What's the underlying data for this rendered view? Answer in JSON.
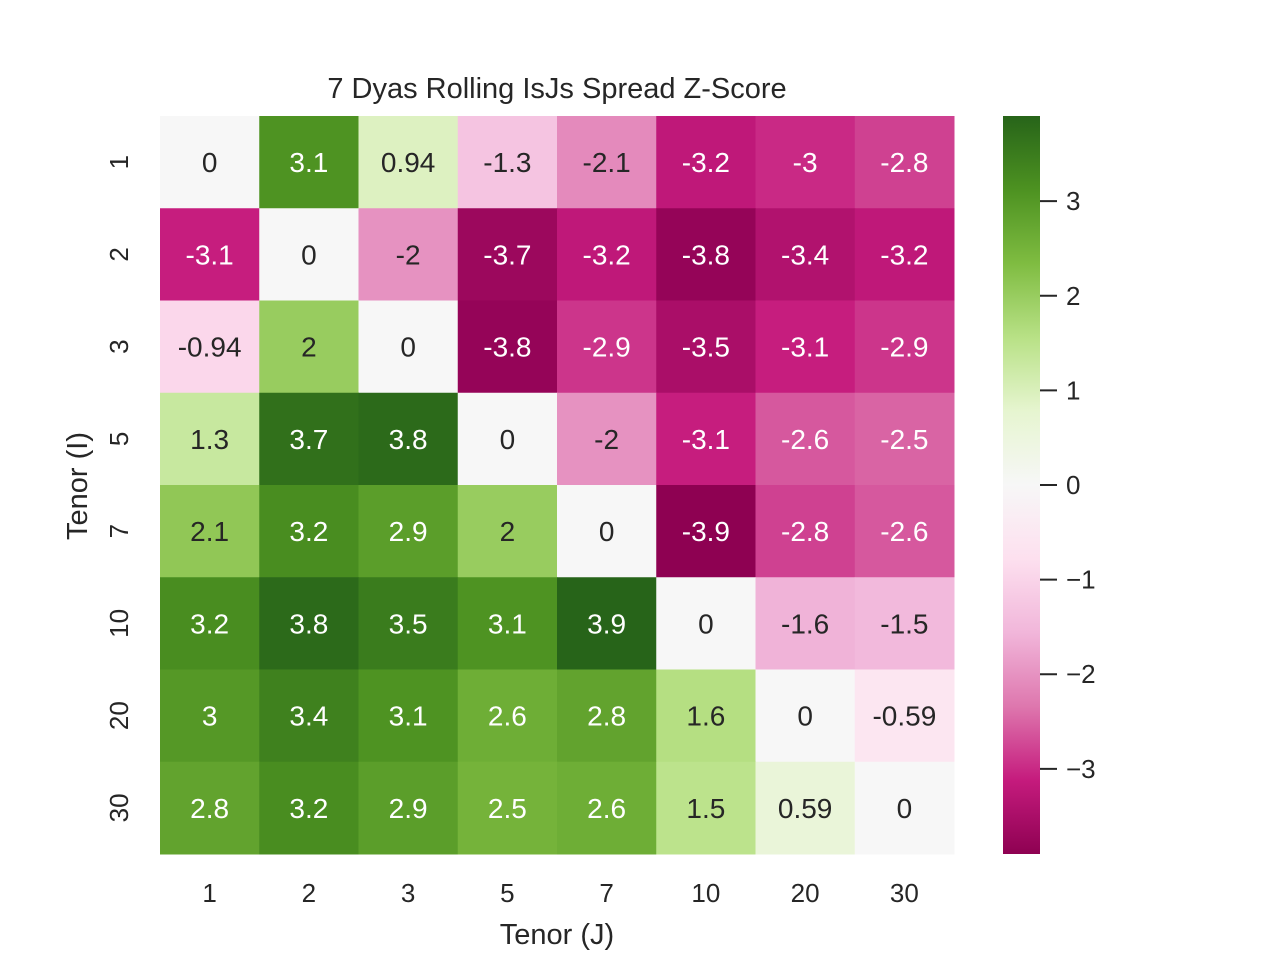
{
  "chart_data": {
    "type": "heatmap",
    "title": "7 Dyas Rolling IsJs Spread Z-Score",
    "xlabel": "Tenor (J)",
    "ylabel": "Tenor (I)",
    "x_categories": [
      "1",
      "2",
      "3",
      "5",
      "7",
      "10",
      "20",
      "30"
    ],
    "y_categories": [
      "1",
      "2",
      "3",
      "5",
      "7",
      "10",
      "20",
      "30"
    ],
    "values": [
      [
        0,
        3.1,
        0.94,
        -1.3,
        -2.1,
        -3.2,
        -3,
        -2.8
      ],
      [
        -3.1,
        0,
        -2,
        -3.7,
        -3.2,
        -3.8,
        -3.4,
        -3.2
      ],
      [
        -0.94,
        2,
        0,
        -3.8,
        -2.9,
        -3.5,
        -3.1,
        -2.9
      ],
      [
        1.3,
        3.7,
        3.8,
        0,
        -2,
        -3.1,
        -2.6,
        -2.5
      ],
      [
        2.1,
        3.2,
        2.9,
        2,
        0,
        -3.9,
        -2.8,
        -2.6
      ],
      [
        3.2,
        3.8,
        3.5,
        3.1,
        3.9,
        0,
        -1.6,
        -1.5
      ],
      [
        3,
        3.4,
        3.1,
        2.6,
        2.8,
        1.6,
        0,
        -0.59
      ],
      [
        2.8,
        3.2,
        2.9,
        2.5,
        2.6,
        1.5,
        0.59,
        0
      ]
    ],
    "colormap": "PiYG",
    "vmin": -3.9,
    "vmax": 3.9,
    "colorbar_ticks": [
      "3",
      "2",
      "1",
      "0",
      "−1",
      "−2",
      "−3"
    ],
    "colorbar_tick_values": [
      3,
      2,
      1,
      0,
      -1,
      -2,
      -3
    ],
    "annotate": true,
    "grid": false
  }
}
